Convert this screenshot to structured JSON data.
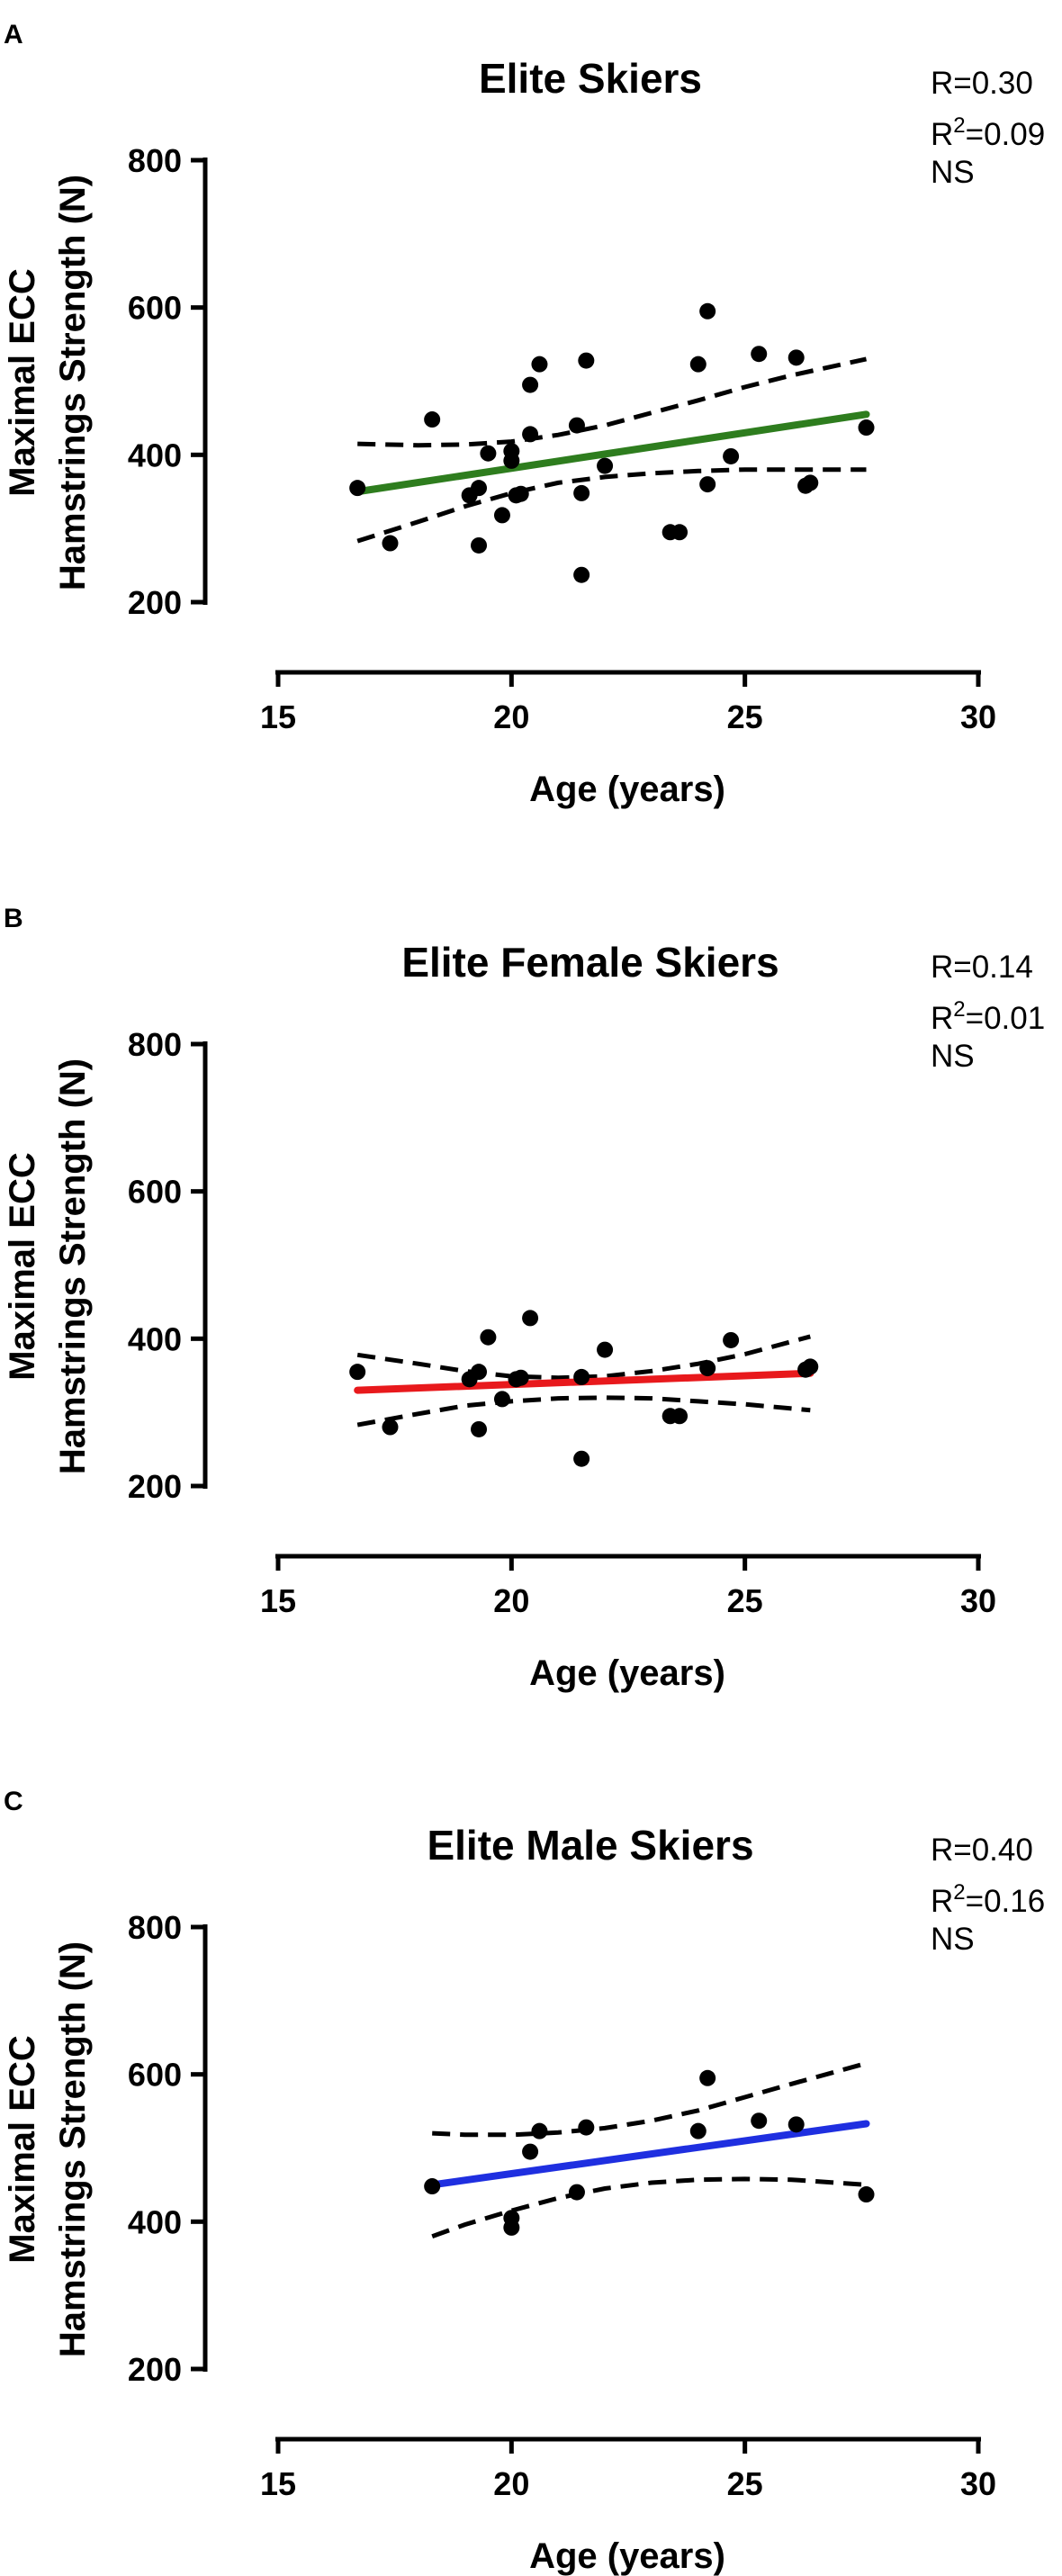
{
  "chart_data": [
    {
      "type": "scatter",
      "panel_label": "A",
      "title": "Elite Skiers",
      "stats": {
        "r": "R=0.30",
        "r2_prefix": "R",
        "r2_sup": "2",
        "r2_value": "=0.09",
        "significance": "NS"
      },
      "xlabel": "Age (years)",
      "ylabel_lines": [
        "Maximal ECC",
        "Hamstrings Strength (N)"
      ],
      "xlim": [
        15,
        30
      ],
      "ylim": [
        200,
        800
      ],
      "xticks": [
        15,
        20,
        25,
        30
      ],
      "yticks": [
        200,
        400,
        600,
        800
      ],
      "fit_color": "#2e7d1e",
      "points": [
        [
          16.7,
          355
        ],
        [
          17.4,
          280
        ],
        [
          18.3,
          448
        ],
        [
          19.1,
          345
        ],
        [
          19.3,
          355
        ],
        [
          19.3,
          277
        ],
        [
          19.5,
          402
        ],
        [
          19.8,
          318
        ],
        [
          20.0,
          392
        ],
        [
          20.0,
          405
        ],
        [
          20.1,
          345
        ],
        [
          20.2,
          347
        ],
        [
          20.4,
          428
        ],
        [
          20.4,
          495
        ],
        [
          20.6,
          523
        ],
        [
          21.4,
          440
        ],
        [
          21.5,
          348
        ],
        [
          21.5,
          237
        ],
        [
          21.6,
          528
        ],
        [
          22.0,
          385
        ],
        [
          23.4,
          295
        ],
        [
          23.6,
          295
        ],
        [
          24.0,
          523
        ],
        [
          24.2,
          595
        ],
        [
          24.2,
          360
        ],
        [
          24.7,
          398
        ],
        [
          25.3,
          537
        ],
        [
          26.1,
          532
        ],
        [
          26.3,
          358
        ],
        [
          26.4,
          362
        ],
        [
          27.6,
          437
        ]
      ],
      "fit": {
        "x": [
          16.7,
          27.6
        ],
        "y": [
          350,
          455
        ]
      },
      "ci_upper": {
        "x": [
          16.7,
          18.0,
          19.0,
          20.0,
          21.0,
          22.0,
          23.0,
          24.0,
          25.0,
          26.0,
          27.6
        ],
        "y": [
          415,
          413,
          414,
          418,
          427,
          440,
          457,
          474,
          492,
          508,
          530
        ]
      },
      "ci_lower": {
        "x": [
          16.7,
          18.0,
          19.0,
          20.0,
          21.0,
          22.0,
          23.0,
          24.0,
          25.0,
          26.0,
          27.6
        ],
        "y": [
          283,
          309,
          330,
          348,
          362,
          370,
          375,
          378,
          380,
          380,
          380
        ]
      }
    },
    {
      "type": "scatter",
      "panel_label": "B",
      "title": "Elite Female Skiers",
      "stats": {
        "r": "R=0.14",
        "r2_prefix": "R",
        "r2_sup": "2",
        "r2_value": "=0.01",
        "significance": "NS"
      },
      "xlabel": "Age (years)",
      "ylabel_lines": [
        "Maximal ECC",
        "Hamstrings Strength (N)"
      ],
      "xlim": [
        15,
        30
      ],
      "ylim": [
        200,
        800
      ],
      "xticks": [
        15,
        20,
        25,
        30
      ],
      "yticks": [
        200,
        400,
        600,
        800
      ],
      "fit_color": "#e8191c",
      "points": [
        [
          16.7,
          355
        ],
        [
          17.4,
          280
        ],
        [
          19.1,
          345
        ],
        [
          19.3,
          355
        ],
        [
          19.3,
          277
        ],
        [
          19.5,
          402
        ],
        [
          19.8,
          318
        ],
        [
          20.1,
          345
        ],
        [
          20.2,
          347
        ],
        [
          20.4,
          428
        ],
        [
          21.5,
          348
        ],
        [
          21.5,
          237
        ],
        [
          22.0,
          385
        ],
        [
          23.4,
          295
        ],
        [
          23.6,
          295
        ],
        [
          24.2,
          360
        ],
        [
          24.7,
          398
        ],
        [
          26.3,
          358
        ],
        [
          26.4,
          362
        ]
      ],
      "fit": {
        "x": [
          16.7,
          26.4
        ],
        "y": [
          330,
          353
        ]
      },
      "ci_upper": {
        "x": [
          16.7,
          18.0,
          19.0,
          20.0,
          21.0,
          22.0,
          23.0,
          24.0,
          25.0,
          26.4
        ],
        "y": [
          378,
          366,
          356,
          349,
          347,
          349,
          356,
          366,
          379,
          403
        ]
      },
      "ci_lower": {
        "x": [
          16.7,
          18.0,
          19.0,
          20.0,
          21.0,
          22.0,
          23.0,
          24.0,
          25.0,
          26.4
        ],
        "y": [
          283,
          298,
          309,
          315,
          319,
          320,
          319,
          315,
          311,
          303
        ]
      }
    },
    {
      "type": "scatter",
      "panel_label": "C",
      "title": "Elite Male Skiers",
      "stats": {
        "r": "R=0.40",
        "r2_prefix": "R",
        "r2_sup": "2",
        "r2_value": "=0.16",
        "significance": "NS"
      },
      "xlabel": "Age (years)",
      "ylabel_lines": [
        "Maximal ECC",
        "Hamstrings Strength (N)"
      ],
      "xlim": [
        15,
        30
      ],
      "ylim": [
        200,
        800
      ],
      "xticks": [
        15,
        20,
        25,
        30
      ],
      "yticks": [
        200,
        400,
        600,
        800
      ],
      "fit_color": "#1f2fe0",
      "points": [
        [
          18.3,
          448
        ],
        [
          20.0,
          392
        ],
        [
          20.0,
          405
        ],
        [
          20.4,
          495
        ],
        [
          20.6,
          523
        ],
        [
          21.4,
          440
        ],
        [
          21.6,
          528
        ],
        [
          24.0,
          523
        ],
        [
          24.2,
          595
        ],
        [
          25.3,
          537
        ],
        [
          26.1,
          532
        ],
        [
          27.6,
          437
        ]
      ],
      "fit": {
        "x": [
          18.3,
          27.6
        ],
        "y": [
          450,
          533
        ]
      },
      "ci_upper": {
        "x": [
          18.3,
          19.0,
          20.0,
          21.0,
          22.0,
          23.0,
          24.0,
          25.0,
          26.0,
          27.6
        ],
        "y": [
          520,
          518,
          518,
          521,
          527,
          537,
          551,
          569,
          587,
          615
        ]
      },
      "ci_lower": {
        "x": [
          18.3,
          19.0,
          20.0,
          21.0,
          22.0,
          23.0,
          24.0,
          25.0,
          26.0,
          27.6
        ],
        "y": [
          380,
          396,
          415,
          432,
          445,
          453,
          457,
          458,
          457,
          450
        ]
      }
    }
  ]
}
